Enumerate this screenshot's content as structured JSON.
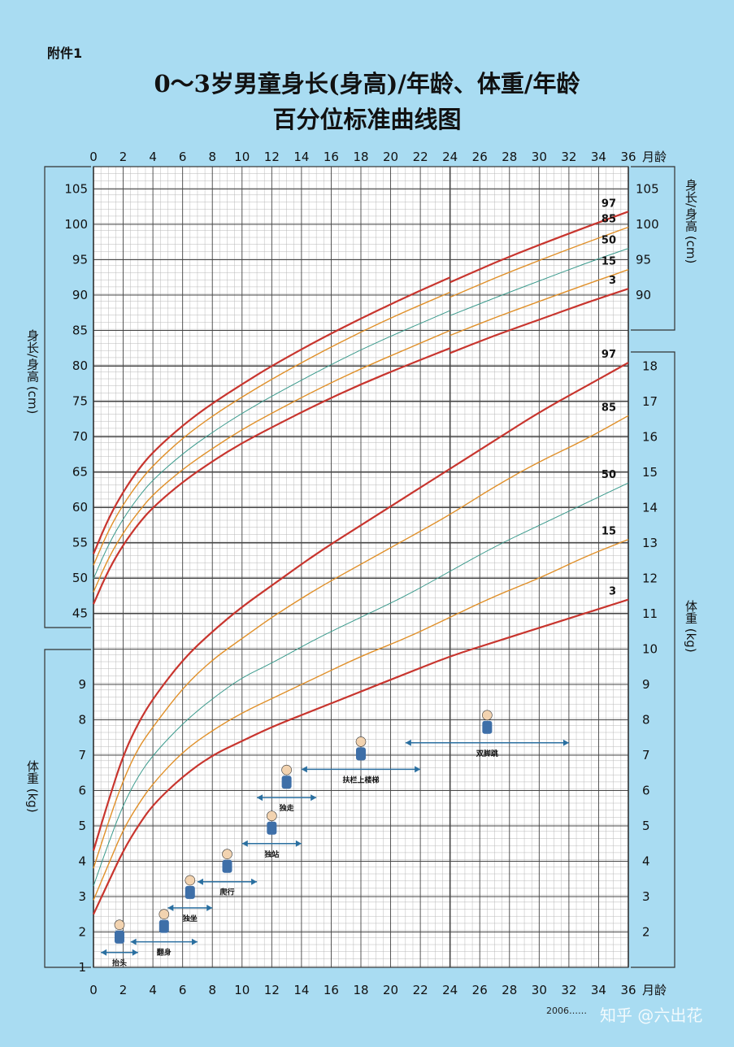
{
  "header": {
    "annex": "附件1",
    "title_line1": "0～3岁男童身长(身高)/年龄、体重/年龄",
    "title_line2": "百分位标准曲线图"
  },
  "footer": {
    "source": "2006……",
    "watermark": "知乎 @六出花"
  },
  "colors": {
    "background": "#a9dcf2",
    "grid_bg": "#ffffff",
    "p3_97": "#c8352e",
    "p15_85": "#e0902a",
    "p50": "#3a9a8c",
    "arrow": "#2a6fa0"
  },
  "chart_data": [
    {
      "type": "line",
      "name_cn": "身长/身高",
      "xlabel": "月龄",
      "ylabel": "身长/身高 (cm)",
      "xlim": [
        0,
        36
      ],
      "ylim": [
        45,
        105
      ],
      "x_ticks": [
        0,
        2,
        4,
        6,
        8,
        10,
        12,
        14,
        16,
        18,
        20,
        22,
        24,
        26,
        28,
        30,
        32,
        34,
        36
      ],
      "y_ticks_left": [
        45,
        50,
        55,
        60,
        65,
        70,
        75,
        80,
        85,
        90,
        95,
        100,
        105
      ],
      "y_ticks_right": [
        90,
        95,
        100,
        105
      ],
      "x": [
        0,
        1,
        2,
        3,
        4,
        6,
        8,
        10,
        12,
        15,
        18,
        21,
        24,
        24,
        27,
        30,
        33,
        36
      ],
      "series": [
        {
          "name": "97",
          "values": [
            53.4,
            58.4,
            62.2,
            65.3,
            67.8,
            71.6,
            74.7,
            77.4,
            80.0,
            83.5,
            86.7,
            89.7,
            92.5,
            91.8,
            94.6,
            97.1,
            99.5,
            101.8
          ]
        },
        {
          "name": "85",
          "values": [
            51.8,
            56.7,
            60.4,
            63.4,
            65.9,
            69.8,
            72.9,
            75.6,
            78.1,
            81.6,
            84.8,
            87.7,
            90.4,
            89.7,
            92.4,
            94.9,
            97.3,
            99.6
          ]
        },
        {
          "name": "50",
          "values": [
            49.9,
            54.7,
            58.4,
            61.4,
            63.9,
            67.6,
            70.6,
            73.3,
            75.7,
            79.1,
            82.3,
            85.1,
            87.8,
            87.1,
            89.6,
            92.0,
            94.4,
            96.6
          ]
        },
        {
          "name": "15",
          "values": [
            48.0,
            52.8,
            56.4,
            59.3,
            61.8,
            65.4,
            68.3,
            71.0,
            73.3,
            76.6,
            79.6,
            82.3,
            85.0,
            84.3,
            86.8,
            89.1,
            91.4,
            93.6
          ]
        },
        {
          "name": "3",
          "values": [
            46.3,
            51.1,
            54.7,
            57.6,
            60.0,
            63.6,
            66.5,
            69.1,
            71.3,
            74.5,
            77.4,
            80.0,
            82.5,
            81.8,
            84.3,
            86.5,
            88.8,
            90.9
          ]
        }
      ]
    },
    {
      "type": "line",
      "name_cn": "体重",
      "xlabel": "月龄",
      "ylabel": "体重 (kg)",
      "xlim": [
        0,
        36
      ],
      "ylim": [
        1,
        18
      ],
      "y_ticks_left": [
        1,
        2,
        3,
        4,
        5,
        6,
        7,
        8,
        9
      ],
      "y_ticks_right": [
        2,
        3,
        4,
        5,
        6,
        7,
        8,
        9,
        10,
        11,
        12,
        13,
        14,
        15,
        16,
        17,
        18
      ],
      "x": [
        0,
        1,
        2,
        3,
        4,
        6,
        8,
        10,
        12,
        15,
        18,
        21,
        24,
        27,
        30,
        33,
        36
      ],
      "series": [
        {
          "name": "97",
          "values": [
            4.3,
            5.7,
            7.0,
            7.9,
            8.6,
            9.7,
            10.5,
            11.2,
            11.8,
            12.7,
            13.5,
            14.3,
            15.1,
            15.9,
            16.7,
            17.4,
            18.1
          ]
        },
        {
          "name": "85",
          "values": [
            3.8,
            5.1,
            6.3,
            7.2,
            7.8,
            8.9,
            9.7,
            10.3,
            10.9,
            11.7,
            12.4,
            13.1,
            13.8,
            14.6,
            15.3,
            15.9,
            16.6
          ]
        },
        {
          "name": "50",
          "values": [
            3.3,
            4.5,
            5.6,
            6.4,
            7.0,
            7.9,
            8.6,
            9.2,
            9.6,
            10.3,
            10.9,
            11.5,
            12.2,
            12.9,
            13.5,
            14.1,
            14.7
          ]
        },
        {
          "name": "15",
          "values": [
            2.9,
            3.9,
            4.9,
            5.6,
            6.2,
            7.1,
            7.7,
            8.2,
            8.6,
            9.2,
            9.8,
            10.3,
            10.9,
            11.5,
            12.0,
            12.6,
            13.1
          ]
        },
        {
          "name": "3",
          "values": [
            2.5,
            3.4,
            4.3,
            5.0,
            5.6,
            6.4,
            7.0,
            7.4,
            7.8,
            8.3,
            8.8,
            9.3,
            9.8,
            10.2,
            10.6,
            11.0,
            11.4
          ]
        }
      ]
    }
  ],
  "milestones": [
    {
      "label": "抬头",
      "start": 0.5,
      "end": 3.0,
      "weight_level": 1.42
    },
    {
      "label": "翻身",
      "start": 2.5,
      "end": 7.0,
      "weight_level": 1.72
    },
    {
      "label": "独坐",
      "start": 5.0,
      "end": 8.0,
      "weight_level": 2.68
    },
    {
      "label": "爬行",
      "start": 7.0,
      "end": 11.0,
      "weight_level": 3.42
    },
    {
      "label": "独站",
      "start": 10.0,
      "end": 14.0,
      "weight_level": 4.5
    },
    {
      "label": "独走",
      "start": 11.0,
      "end": 15.0,
      "weight_level": 5.8
    },
    {
      "label": "扶栏上楼梯",
      "start": 14.0,
      "end": 22.0,
      "weight_level": 6.6
    },
    {
      "label": "双脚跳",
      "start": 21.0,
      "end": 32.0,
      "weight_level": 7.35
    }
  ]
}
